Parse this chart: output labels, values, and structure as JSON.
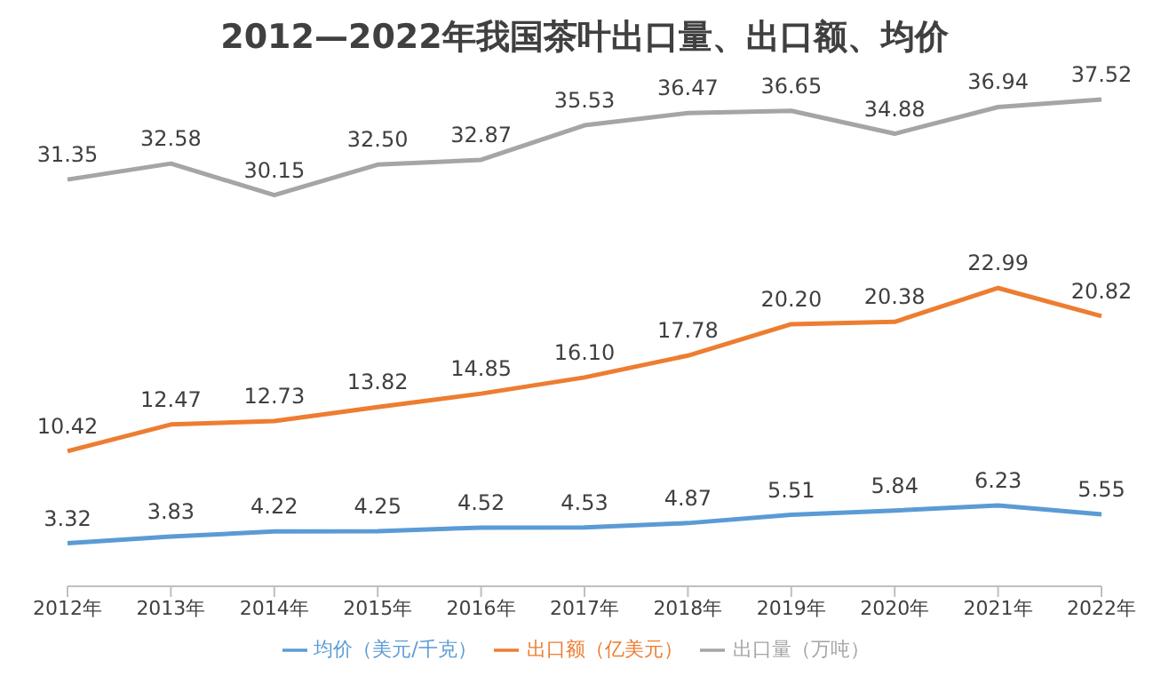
{
  "chart_data": {
    "type": "line",
    "title": "2012—2022年我国茶叶出口量、出口额、均价",
    "categories": [
      "2012年",
      "2013年",
      "2014年",
      "2015年",
      "2016年",
      "2017年",
      "2018年",
      "2019年",
      "2020年",
      "2021年",
      "2022年"
    ],
    "series": [
      {
        "name": "均价（美元/千克）",
        "color": "#5b9bd5",
        "values": [
          3.32,
          3.83,
          4.22,
          4.25,
          4.52,
          4.53,
          4.87,
          5.51,
          5.84,
          6.23,
          5.55
        ],
        "value_labels": [
          "3.32",
          "3.83",
          "4.22",
          "4.25",
          "4.52",
          "4.53",
          "4.87",
          "5.51",
          "5.84",
          "6.23",
          "5.55"
        ]
      },
      {
        "name": "出口额（亿美元）",
        "color": "#ed7d31",
        "values": [
          10.42,
          12.47,
          12.73,
          13.82,
          14.85,
          16.1,
          17.78,
          20.2,
          20.38,
          22.99,
          20.82
        ],
        "value_labels": [
          "10.42",
          "12.47",
          "12.73",
          "13.82",
          "14.85",
          "16.10",
          "17.78",
          "20.20",
          "20.38",
          "22.99",
          "20.82"
        ]
      },
      {
        "name": "出口量（万吨）",
        "color": "#a5a5a5",
        "values": [
          31.35,
          32.58,
          30.15,
          32.5,
          32.87,
          35.53,
          36.47,
          36.65,
          34.88,
          36.94,
          37.52
        ],
        "value_labels": [
          "31.35",
          "32.58",
          "30.15",
          "32.50",
          "32.87",
          "35.53",
          "36.47",
          "36.65",
          "34.88",
          "36.94",
          "37.52"
        ]
      }
    ],
    "legend": "bottom",
    "marker": "none"
  }
}
